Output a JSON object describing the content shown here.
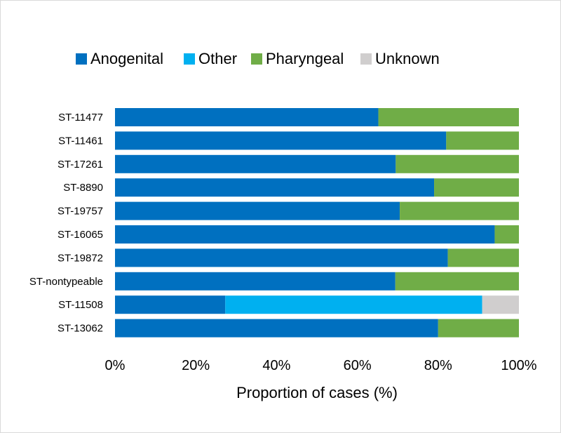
{
  "chart_data": {
    "type": "bar",
    "orientation": "horizontal",
    "stacked": true,
    "percent_stacked": true,
    "title": "",
    "xlabel": "Proportion of cases (%)",
    "ylabel": "",
    "xlim": [
      0,
      100
    ],
    "x_ticks": [
      "0%",
      "20%",
      "40%",
      "60%",
      "80%",
      "100%"
    ],
    "grid": false,
    "legend_position": "top",
    "categories": [
      "ST-11477",
      "ST-11461",
      "ST-17261",
      "ST-8890",
      "ST-19757",
      "ST-16065",
      "ST-19872",
      "ST-nontypeable",
      "ST-11508",
      "ST-13062"
    ],
    "series": [
      {
        "name": "Anogenital",
        "color": "#0070c0",
        "values": [
          65.2,
          82.0,
          69.5,
          79.0,
          70.5,
          94.0,
          82.4,
          69.4,
          27.3,
          80.0
        ]
      },
      {
        "name": "Other",
        "color": "#00b0f0",
        "values": [
          0,
          0,
          0,
          0,
          0,
          0,
          0,
          0,
          63.6,
          0
        ]
      },
      {
        "name": "Pharyngeal",
        "color": "#70ad47",
        "values": [
          34.8,
          18.0,
          30.5,
          21.0,
          29.5,
          6.0,
          17.6,
          30.6,
          0,
          20.0
        ]
      },
      {
        "name": "Unknown",
        "color": "#d0cece",
        "values": [
          0,
          0,
          0,
          0,
          0,
          0,
          0,
          0,
          9.1,
          0
        ]
      }
    ]
  }
}
